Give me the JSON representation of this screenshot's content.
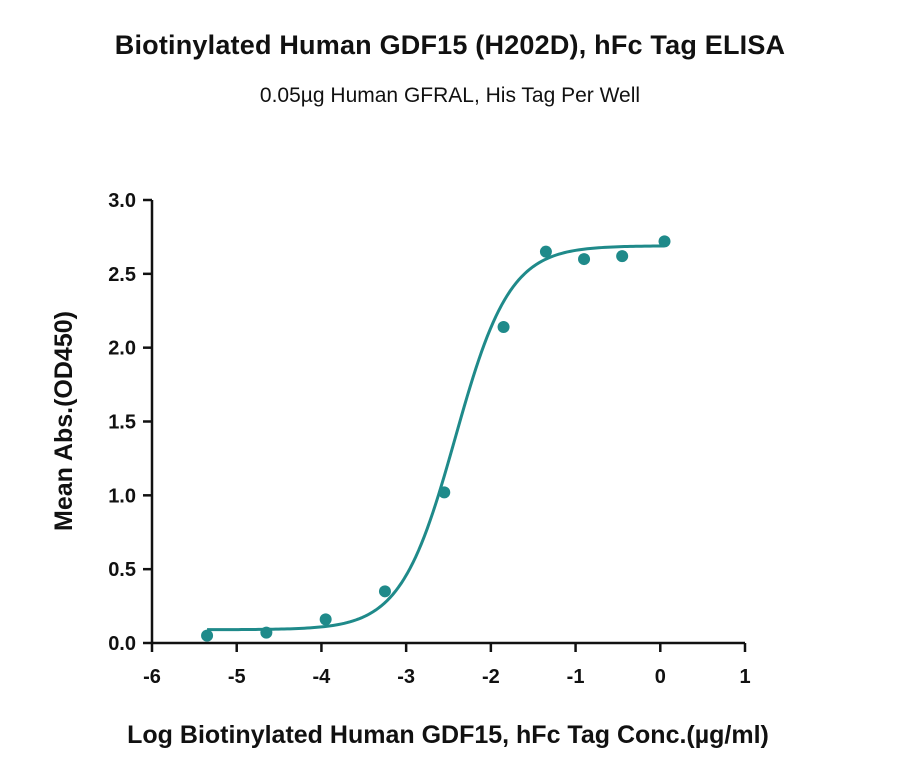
{
  "chart_data": {
    "type": "scatter",
    "title": "Biotinylated Human GDF15 (H202D), hFc Tag ELISA",
    "subtitle": "0.05µg Human GFRAL, His Tag Per Well",
    "xlabel": "Log Biotinylated Human GDF15, hFc Tag Conc.(µg/ml)",
    "ylabel": "Mean Abs.(OD450)",
    "xlim": [
      -6,
      1
    ],
    "ylim": [
      0,
      3.0
    ],
    "xticks": [
      "-6",
      "-5",
      "-4",
      "-3",
      "-2",
      "-1",
      "0",
      "1"
    ],
    "yticks": [
      "0.0",
      "0.5",
      "1.0",
      "1.5",
      "2.0",
      "2.5",
      "3.0"
    ],
    "grid": false,
    "color": "#1f8a8a",
    "series": [
      {
        "x": [
          -5.35,
          -4.65,
          -3.95,
          -3.25,
          -2.55,
          -1.85,
          -1.35,
          -0.9,
          -0.45,
          0.05
        ],
        "y": [
          0.05,
          0.07,
          0.16,
          0.35,
          1.02,
          2.14,
          2.65,
          2.6,
          2.62,
          2.72
        ]
      }
    ],
    "fit": {
      "model": "four-parameter logistic",
      "bottom": 0.09,
      "top": 2.69,
      "log_ec50": -2.42,
      "hill_slope": 1.35
    }
  }
}
